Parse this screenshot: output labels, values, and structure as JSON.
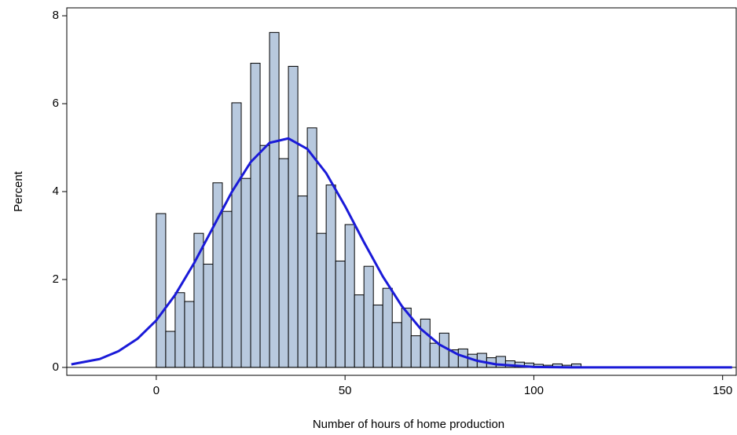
{
  "chart_data": {
    "type": "histogram",
    "xlabel": "Number of hours of home production",
    "ylabel": "Percent",
    "bins": [
      0,
      2.5,
      5,
      7.5,
      10,
      12.5,
      15,
      17.5,
      20,
      22.5,
      25,
      27.5,
      30,
      32.5,
      35,
      37.5,
      40,
      42.5,
      45,
      47.5,
      50,
      52.5,
      55,
      57.5,
      60,
      62.5,
      65,
      67.5,
      70,
      72.5,
      75,
      77.5,
      80,
      82.5,
      85,
      87.5,
      90,
      92.5,
      95,
      97.5,
      100,
      102.5,
      105,
      107.5,
      110,
      112.5
    ],
    "values": [
      3.5,
      0.82,
      1.7,
      1.5,
      3.05,
      2.35,
      4.2,
      3.55,
      6.02,
      4.3,
      6.92,
      5.05,
      7.62,
      4.75,
      6.85,
      3.9,
      5.45,
      3.05,
      4.15,
      2.42,
      3.25,
      1.65,
      2.3,
      1.42,
      1.8,
      1.02,
      1.35,
      0.72,
      1.1,
      0.55,
      0.78,
      0.4,
      0.42,
      0.3,
      0.32,
      0.22,
      0.25,
      0.15,
      0.12,
      0.1,
      0.07,
      0.05,
      0.08,
      0.05,
      0.08
    ],
    "color": "#b8c9de",
    "curve": {
      "color": "#1a1ad8",
      "x": [
        -22.5,
        -15,
        -10,
        -5,
        0,
        5,
        10,
        15,
        20,
        25,
        30,
        35,
        40,
        45,
        50,
        55,
        60,
        65,
        70,
        75,
        80,
        85,
        90,
        100,
        110,
        152.5
      ],
      "y": [
        0.07,
        0.19,
        0.37,
        0.65,
        1.07,
        1.65,
        2.37,
        3.18,
        3.99,
        4.67,
        5.11,
        5.21,
        4.97,
        4.42,
        3.67,
        2.85,
        2.07,
        1.4,
        0.88,
        0.52,
        0.29,
        0.15,
        0.07,
        0.01,
        0,
        0
      ]
    },
    "xlim": [
      -23.7,
      153.6
    ],
    "ylim": [
      -0.18,
      8.18
    ],
    "xticks": [
      0,
      50,
      100,
      150
    ],
    "yticks": [
      0,
      2,
      4,
      6,
      8
    ]
  }
}
